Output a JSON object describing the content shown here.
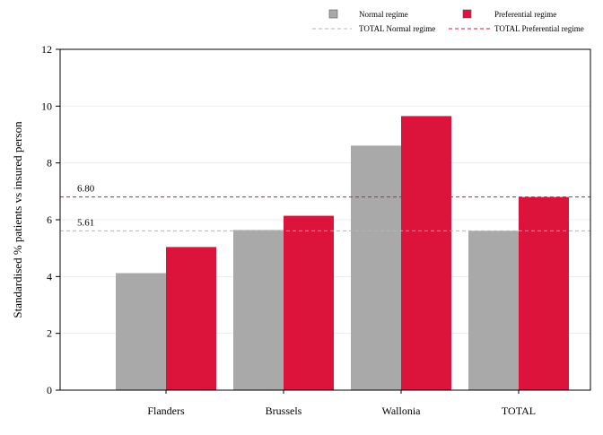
{
  "chart_data": {
    "type": "bar",
    "categories": [
      "Flanders",
      "Brussels",
      "Wallonia",
      "TOTAL"
    ],
    "series": [
      {
        "name": "Normal regime",
        "values": [
          4.12,
          5.64,
          8.61,
          5.61
        ],
        "color": "#a9a9a9"
      },
      {
        "name": "Preferential regime",
        "values": [
          5.04,
          6.14,
          9.65,
          6.8
        ],
        "color": "#dc143c"
      }
    ],
    "reference_lines": [
      {
        "name": "TOTAL Normal regime",
        "value": 5.61,
        "label": "5.61",
        "color": "#b5b5b5",
        "style": "dashed"
      },
      {
        "name": "TOTAL Preferential regime",
        "value": 6.8,
        "label": "6.80",
        "color": "#dc143c",
        "style": "dashed"
      }
    ],
    "title": "",
    "xlabel": "",
    "ylabel": "Standardised % patients vs insured person",
    "ylim": [
      0,
      12
    ],
    "yticks": [
      0,
      2,
      4,
      6,
      8,
      10,
      12
    ],
    "grid": "horizontal",
    "legend_position": "top"
  }
}
